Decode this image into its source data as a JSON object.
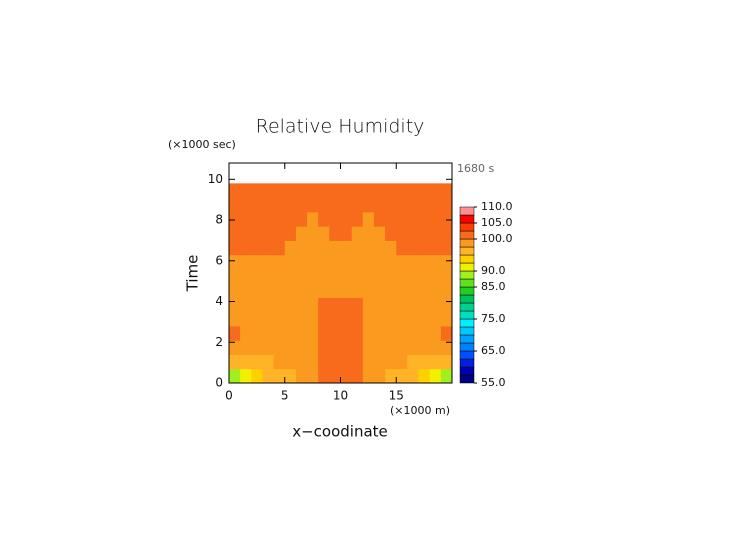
{
  "chart_data": {
    "type": "contour",
    "title": "Relative Humidity",
    "y_unit_label": "(×1000 sec)",
    "time_label": "1680 s",
    "xlabel": "x−coodinate",
    "ylabel": "Time",
    "x_unit_label": "(×1000 m)",
    "xlim": [
      0,
      20
    ],
    "ylim": [
      0,
      10.8
    ],
    "xticks": [
      0,
      5,
      10,
      15
    ],
    "yticks": [
      0,
      2,
      4,
      6,
      8,
      10
    ],
    "x": [
      0.5,
      1.5,
      2.5,
      3.5,
      4.5,
      5.5,
      6.5,
      7.5,
      8.5,
      9.5,
      10.5,
      11.5,
      12.5,
      13.5,
      14.5,
      15.5,
      16.5,
      17.5,
      18.5,
      19.5
    ],
    "y": [
      0.35,
      1.05,
      1.75,
      2.45,
      3.15,
      3.85,
      4.55,
      5.25,
      5.95,
      6.65,
      7.35,
      8.05,
      8.75,
      9.45
    ],
    "z": [
      [
        88,
        91,
        93,
        96,
        96,
        96,
        98,
        99,
        101,
        101,
        101,
        101,
        99,
        98,
        96,
        96,
        96,
        93,
        91,
        88
      ],
      [
        96,
        96,
        96,
        96,
        98,
        98,
        98,
        98,
        101,
        101,
        101,
        101,
        98,
        98,
        98,
        98,
        96,
        96,
        96,
        96
      ],
      [
        98,
        98,
        98,
        98,
        98,
        98,
        98,
        98,
        101,
        101,
        101,
        101,
        98,
        98,
        98,
        98,
        98,
        98,
        98,
        98
      ],
      [
        101,
        98,
        98,
        98,
        98,
        98,
        98,
        98,
        101,
        101,
        101,
        101,
        98,
        98,
        98,
        98,
        98,
        98,
        98,
        101
      ],
      [
        98,
        98,
        98,
        98,
        98,
        98,
        98,
        98,
        101,
        101,
        101,
        101,
        98,
        98,
        98,
        98,
        98,
        98,
        98,
        98
      ],
      [
        98,
        98,
        98,
        98,
        98,
        98,
        98,
        98,
        101,
        101,
        101,
        101,
        98,
        98,
        98,
        98,
        98,
        98,
        98,
        98
      ],
      [
        98,
        98,
        98,
        98,
        98,
        98,
        98,
        98,
        98,
        98,
        98,
        98,
        98,
        98,
        98,
        98,
        98,
        98,
        98,
        98
      ],
      [
        98,
        98,
        98,
        98,
        98,
        98,
        98,
        98,
        98,
        98,
        98,
        98,
        98,
        98,
        98,
        98,
        98,
        98,
        98,
        98
      ],
      [
        98,
        98,
        98,
        98,
        98,
        98,
        98,
        98,
        98,
        98,
        98,
        98,
        98,
        98,
        98,
        98,
        98,
        98,
        98,
        98
      ],
      [
        101,
        101,
        101,
        101,
        101,
        98,
        98,
        98,
        98,
        98,
        98,
        98,
        98,
        98,
        98,
        101,
        101,
        101,
        101,
        101
      ],
      [
        101,
        101,
        101,
        101,
        101,
        101,
        98,
        98,
        98,
        101,
        101,
        98,
        98,
        98,
        101,
        101,
        101,
        101,
        101,
        101
      ],
      [
        101,
        101,
        101,
        101,
        101,
        101,
        101,
        98,
        101,
        101,
        101,
        101,
        98,
        101,
        101,
        101,
        101,
        101,
        101,
        101
      ],
      [
        101,
        101,
        101,
        101,
        101,
        101,
        101,
        101,
        101,
        101,
        101,
        101,
        101,
        101,
        101,
        101,
        101,
        101,
        101,
        101
      ],
      [
        101,
        101,
        101,
        101,
        101,
        101,
        101,
        101,
        101,
        101,
        101,
        101,
        101,
        101,
        101,
        101,
        101,
        101,
        101,
        101
      ]
    ],
    "levels": [
      55,
      57.5,
      60,
      62.5,
      65,
      67.5,
      70,
      72.5,
      75,
      77.5,
      80,
      82.5,
      85,
      87.5,
      90,
      92.5,
      95,
      97.5,
      100,
      102.5,
      105,
      107.5,
      110
    ],
    "colors": [
      "#00007f",
      "#0000b0",
      "#0020e0",
      "#0050ff",
      "#0080ff",
      "#00a0ff",
      "#00c8ff",
      "#00f0ff",
      "#00e0c0",
      "#00d090",
      "#00c060",
      "#20d020",
      "#60e020",
      "#a0f020",
      "#f0f000",
      "#ffd000",
      "#ffb428",
      "#fa9a1e",
      "#f86a1c",
      "#ff3c00",
      "#ff0000",
      "#ff9090"
    ],
    "cbar_ticks": [
      {
        "value": 55,
        "label": "55.0"
      },
      {
        "value": 65,
        "label": "65.0"
      },
      {
        "value": 75,
        "label": "75.0"
      },
      {
        "value": 85,
        "label": "85.0"
      },
      {
        "value": 90,
        "label": "90.0"
      },
      {
        "value": 100,
        "label": "100.0"
      },
      {
        "value": 105,
        "label": "105.0"
      },
      {
        "value": 110,
        "label": "110.0"
      }
    ]
  }
}
